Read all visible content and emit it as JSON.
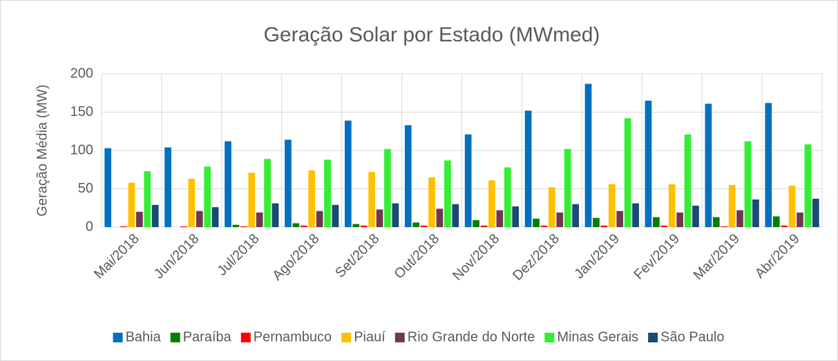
{
  "chart_data": {
    "type": "bar",
    "title": "Geração Solar por Estado (MWmed)",
    "y_label": "Geração Média (MW)",
    "categories": [
      "Mai/2018",
      "Jun/2018",
      "Jul/2018",
      "Ago/2018",
      "Set/2018",
      "Out/2018",
      "Nov/2018",
      "Dez/2018",
      "Jan/2019",
      "Fev/2019",
      "Mar/2019",
      "Abr/2019"
    ],
    "series": [
      {
        "name": "Bahia",
        "color": "#0070c0",
        "values": [
          103,
          104,
          112,
          114,
          139,
          133,
          121,
          152,
          187,
          165,
          161,
          162
        ]
      },
      {
        "name": "Paraíba",
        "color": "#008000",
        "values": [
          0,
          0,
          3,
          5,
          4,
          6,
          9,
          11,
          12,
          13,
          13,
          14
        ]
      },
      {
        "name": "Pernambuco",
        "color": "#ff0000",
        "values": [
          1,
          1,
          1,
          2,
          2,
          2,
          2,
          2,
          2,
          2,
          1,
          2
        ]
      },
      {
        "name": "Piauí",
        "color": "#ffc000",
        "values": [
          58,
          63,
          71,
          74,
          72,
          65,
          61,
          52,
          56,
          56,
          55,
          54
        ]
      },
      {
        "name": "Rio Grande do Norte",
        "color": "#703850",
        "values": [
          20,
          21,
          19,
          21,
          23,
          24,
          22,
          19,
          21,
          19,
          22,
          19
        ]
      },
      {
        "name": "Minas Gerais",
        "color": "#33ee33",
        "values": [
          73,
          79,
          89,
          88,
          102,
          87,
          78,
          102,
          142,
          121,
          112,
          108
        ]
      },
      {
        "name": "São Paulo",
        "color": "#1a4a75",
        "values": [
          29,
          26,
          31,
          29,
          31,
          30,
          27,
          30,
          31,
          28,
          36,
          37
        ]
      }
    ],
    "ylim": [
      0,
      200
    ],
    "yticks": [
      0,
      50,
      100,
      150,
      200
    ],
    "grid": true,
    "legend": "bottom"
  }
}
